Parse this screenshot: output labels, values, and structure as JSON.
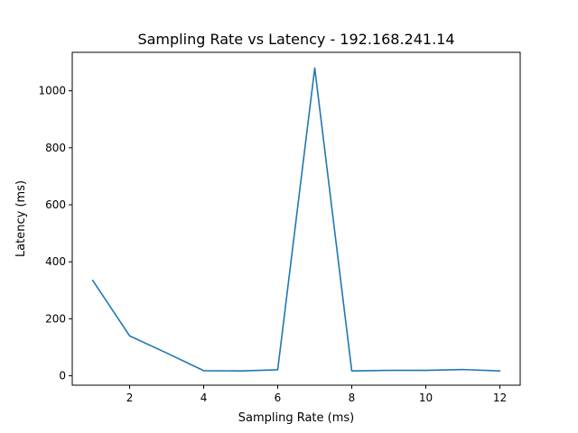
{
  "chart_data": {
    "type": "line",
    "title": "Sampling Rate vs Latency - 192.168.241.14",
    "xlabel": "Sampling Rate (ms)",
    "ylabel": "Latency (ms)",
    "xlim": [
      0.45,
      12.55
    ],
    "ylim": [
      -33,
      1135
    ],
    "xticks": [
      2,
      4,
      6,
      8,
      10,
      12
    ],
    "yticks": [
      0,
      200,
      400,
      600,
      800,
      1000
    ],
    "grid": false,
    "series": [
      {
        "color": "#1f77b4",
        "x": [
          1,
          2,
          3,
          4,
          5,
          6,
          7,
          8,
          9,
          10,
          11,
          12
        ],
        "y": [
          335,
          140,
          80,
          18,
          17,
          21,
          1080,
          17,
          19,
          19,
          22,
          17
        ]
      }
    ]
  }
}
